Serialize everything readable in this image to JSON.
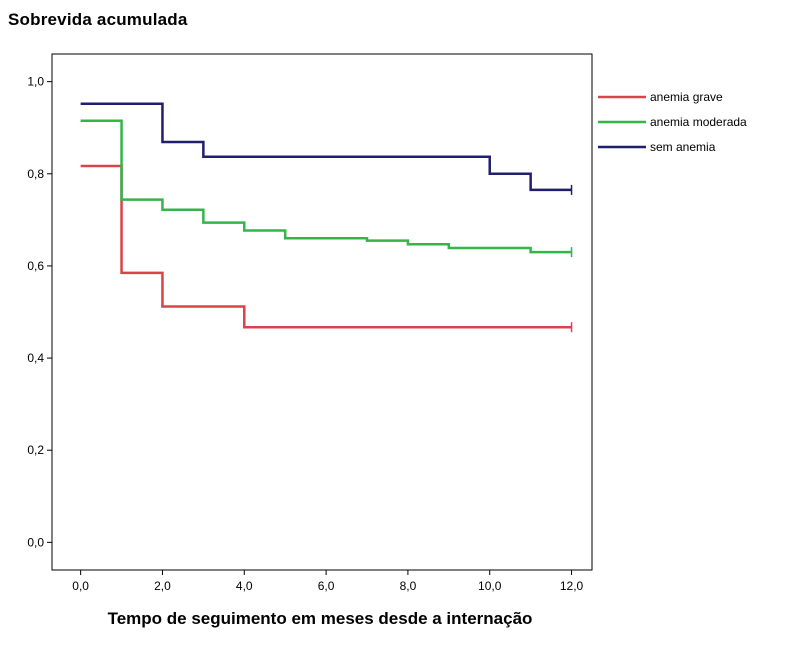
{
  "chart_data": {
    "type": "line",
    "title": "",
    "ylabel": "Sobrevida acumulada",
    "xlabel": "Tempo de seguimento em meses desde a internação",
    "xlim": [
      -0.7,
      12.5
    ],
    "ylim": [
      -0.06,
      1.06
    ],
    "x_ticks": [
      0,
      2,
      4,
      6,
      8,
      10,
      12
    ],
    "x_tick_labels": [
      "0,0",
      "2,0",
      "4,0",
      "6,0",
      "8,0",
      "10,0",
      "12,0"
    ],
    "y_ticks": [
      0,
      0.2,
      0.4,
      0.6,
      0.8,
      1.0
    ],
    "y_tick_labels": [
      "0,0",
      "0,2",
      "0,4",
      "0,6",
      "0,8",
      "1,0"
    ],
    "grid": false,
    "legend_position": "right",
    "series": [
      {
        "name": "anemia grave",
        "color": "#d9434a",
        "step": [
          [
            0,
            0.817
          ],
          [
            1,
            0.585
          ],
          [
            2,
            0.512
          ],
          [
            4,
            0.467
          ],
          [
            12,
            0.467
          ]
        ],
        "censored": [
          12
        ]
      },
      {
        "name": "anemia moderada",
        "color": "#33b54a",
        "step": [
          [
            0,
            0.915
          ],
          [
            1,
            0.744
          ],
          [
            2,
            0.722
          ],
          [
            3,
            0.694
          ],
          [
            4,
            0.677
          ],
          [
            5,
            0.66
          ],
          [
            7,
            0.655
          ],
          [
            8,
            0.647
          ],
          [
            9,
            0.639
          ],
          [
            11,
            0.63
          ],
          [
            12,
            0.63
          ]
        ],
        "censored": [
          12
        ]
      },
      {
        "name": "sem anemia",
        "color": "#1f1f6e",
        "step": [
          [
            0,
            0.952
          ],
          [
            2,
            0.869
          ],
          [
            3,
            0.837
          ],
          [
            10,
            0.8
          ],
          [
            11,
            0.765
          ],
          [
            12,
            0.765
          ]
        ],
        "censored": [
          12
        ]
      }
    ]
  }
}
